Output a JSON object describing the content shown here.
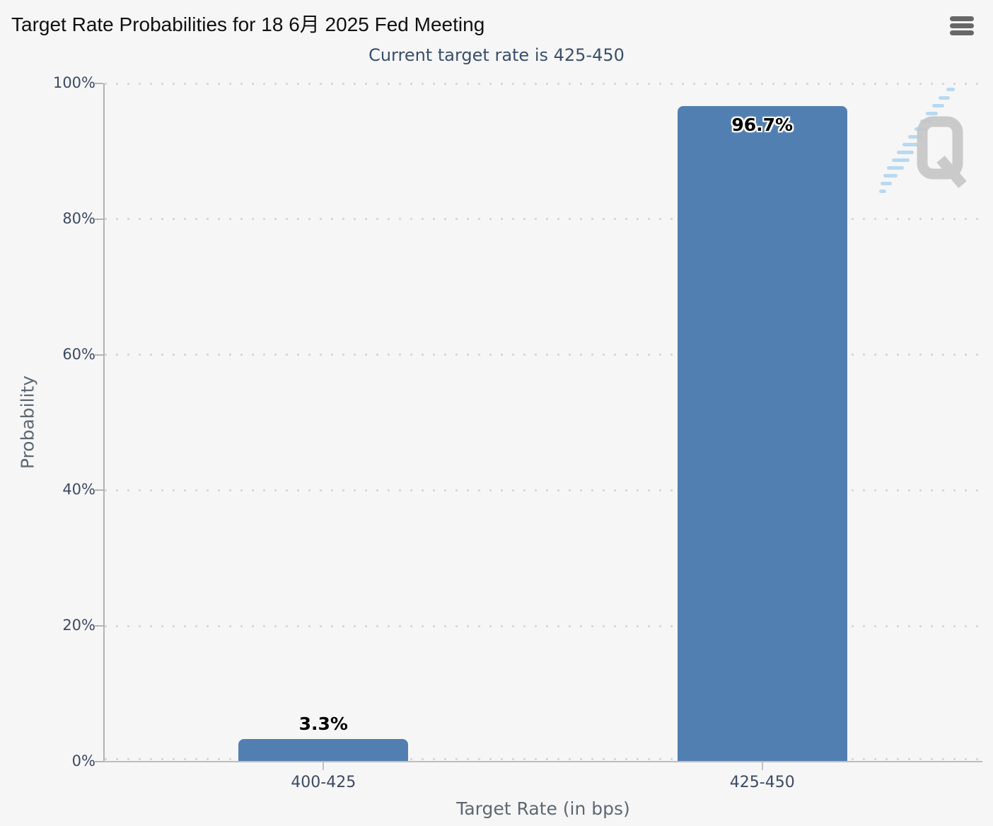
{
  "header": {
    "title": "Target Rate Probabilities for 18 6月 2025 Fed Meeting",
    "subtitle": "Current target rate is 425-450",
    "menu_icon": "hamburger-menu-icon"
  },
  "watermark": {
    "icon": "q-watermark",
    "letter": "Q"
  },
  "chart_data": {
    "type": "bar",
    "title": "Target Rate Probabilities for 18 6月 2025 Fed Meeting",
    "subtitle": "Current target rate is 425-450",
    "categories": [
      "400-425",
      "425-450"
    ],
    "values": [
      3.3,
      96.7
    ],
    "data_labels": [
      "3.3%",
      "96.7%"
    ],
    "xlabel": "Target Rate (in bps)",
    "ylabel": "Probability",
    "ylim": [
      0,
      100
    ],
    "ytick_labels": [
      "0%",
      "20%",
      "40%",
      "60%",
      "80%",
      "100%"
    ],
    "ytick_values": [
      0,
      20,
      40,
      60,
      80,
      100
    ],
    "grid": "dotted-horizontal",
    "legend": "none",
    "bar_color": "#527FB2",
    "label_color": "#000000",
    "axis_text_color": "#3d4a63",
    "background_color": "#f6f6f6"
  }
}
